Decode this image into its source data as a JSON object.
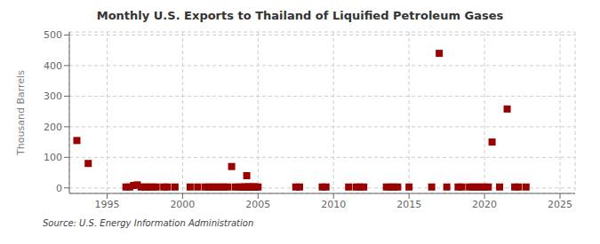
{
  "chart_data": {
    "type": "scatter",
    "title": "Monthly U.S. Exports to Thailand of Liquified Petroleum Gases",
    "ylabel": "Thousand Barrels",
    "source": "Source: U.S. Energy Information Administration",
    "x": [
      1993.0,
      1993.75,
      1996.25,
      1996.5,
      1996.75,
      1997.0,
      1997.25,
      1997.5,
      1997.75,
      1998.0,
      1998.25,
      1998.75,
      1999.0,
      1999.5,
      2000.5,
      2001.0,
      2001.5,
      2001.75,
      2002.0,
      2002.25,
      2002.5,
      2002.75,
      2003.0,
      2003.25,
      2003.5,
      2003.75,
      2004.0,
      2004.08,
      2004.17,
      2004.25,
      2004.33,
      2004.42,
      2004.5,
      2004.58,
      2004.67,
      2004.75,
      2004.83,
      2005.0,
      2007.5,
      2007.75,
      2009.25,
      2009.5,
      2011.0,
      2011.5,
      2011.75,
      2012.0,
      2013.5,
      2013.75,
      2014.0,
      2014.25,
      2015.0,
      2016.5,
      2017.0,
      2017.5,
      2018.25,
      2018.5,
      2019.0,
      2019.25,
      2019.5,
      2019.75,
      2020.0,
      2020.25,
      2020.5,
      2021.0,
      2021.5,
      2022.0,
      2022.25,
      2022.75
    ],
    "values": [
      155,
      80,
      3,
      3,
      8,
      10,
      3,
      3,
      3,
      3,
      3,
      3,
      3,
      3,
      3,
      3,
      3,
      3,
      3,
      3,
      3,
      3,
      3,
      70,
      3,
      3,
      3,
      3,
      3,
      40,
      3,
      3,
      3,
      3,
      3,
      3,
      3,
      3,
      3,
      3,
      3,
      3,
      3,
      3,
      3,
      3,
      3,
      3,
      3,
      3,
      3,
      3,
      440,
      3,
      3,
      3,
      3,
      3,
      3,
      3,
      3,
      3,
      150,
      3,
      258,
      3,
      3,
      3
    ],
    "color": "#990000",
    "marker": "square",
    "xlim": [
      1992.5,
      2026
    ],
    "ylim": [
      -18,
      510
    ],
    "xticks": [
      1995,
      2000,
      2005,
      2010,
      2015,
      2020,
      2025
    ],
    "yticks": [
      0,
      100,
      200,
      300,
      400,
      500
    ],
    "grid": true
  }
}
